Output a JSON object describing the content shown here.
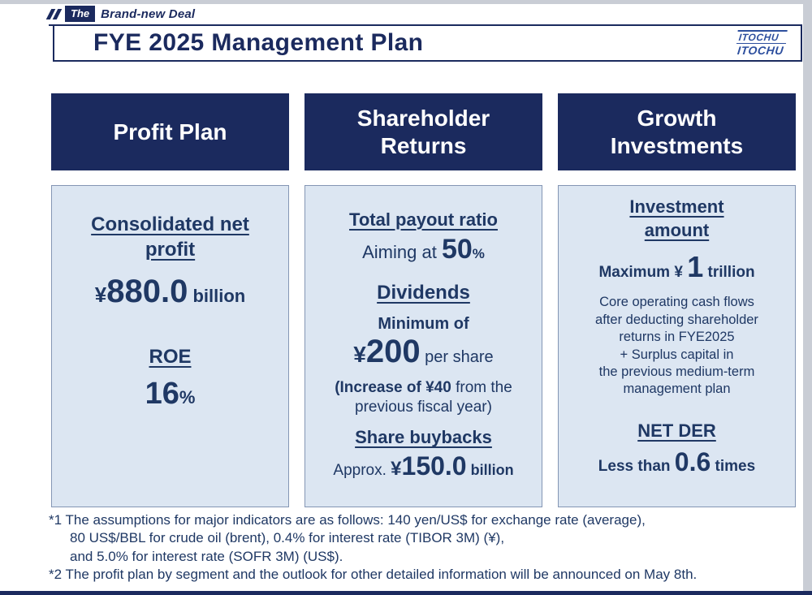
{
  "brand": {
    "the": "The",
    "name": "Brand-new Deal"
  },
  "header": {
    "title": "FYE 2025 Management Plan",
    "logo_top": "ITOCHU",
    "logo_bottom": "ITOCHU"
  },
  "columns": {
    "profit": {
      "header": "Profit Plan",
      "net_profit_title": "Consolidated net profit",
      "net_profit_yen": "¥",
      "net_profit_value": "880.0",
      "net_profit_unit": " billion",
      "roe_title": "ROE",
      "roe_value": "16",
      "roe_unit": "%"
    },
    "returns": {
      "header": "Shareholder Returns",
      "payout_title": "Total payout ratio",
      "payout_prefix": "Aiming at ",
      "payout_value": "50",
      "payout_unit": "%",
      "dividends_title": "Dividends",
      "dividends_min": "Minimum of",
      "dividends_yen": "¥",
      "dividends_value": "200",
      "dividends_suffix": " per share",
      "dividends_note_bold": "(Increase of ¥40",
      "dividends_note_rest": " from the previous fiscal year)",
      "buyback_title": "Share buybacks",
      "buyback_prefix": "Approx. ",
      "buyback_yen": "¥",
      "buyback_value": "150.0",
      "buyback_unit": " billion"
    },
    "growth": {
      "header": "Growth Investments",
      "investment_title": "Investment amount",
      "investment_prefix": "Maximum ¥ ",
      "investment_value": "1",
      "investment_unit": " trillion",
      "note_lines": [
        "Core operating cash flows",
        "after deducting shareholder",
        "returns in FYE2025",
        "+ Surplus capital in",
        "the previous medium-term",
        "management plan"
      ],
      "netder_title": "NET DER",
      "netder_prefix": "Less than ",
      "netder_value": "0.6",
      "netder_unit": " times"
    }
  },
  "footnotes": [
    "*1 The assumptions for major indicators are as follows: 140 yen/US$ for exchange rate (average),",
    "80 US$/BBL for crude oil (brent), 0.4% for interest rate (TIBOR 3M) (¥),",
    "and 5.0% for interest rate (SOFR 3M) (US$).",
    "*2 The profit plan by segment and the outlook for other detailed information will be announced on May 8th."
  ],
  "colors": {
    "navy": "#1b2a5e",
    "panel_blue": "#dce6f2",
    "text_navy": "#1f3864"
  }
}
